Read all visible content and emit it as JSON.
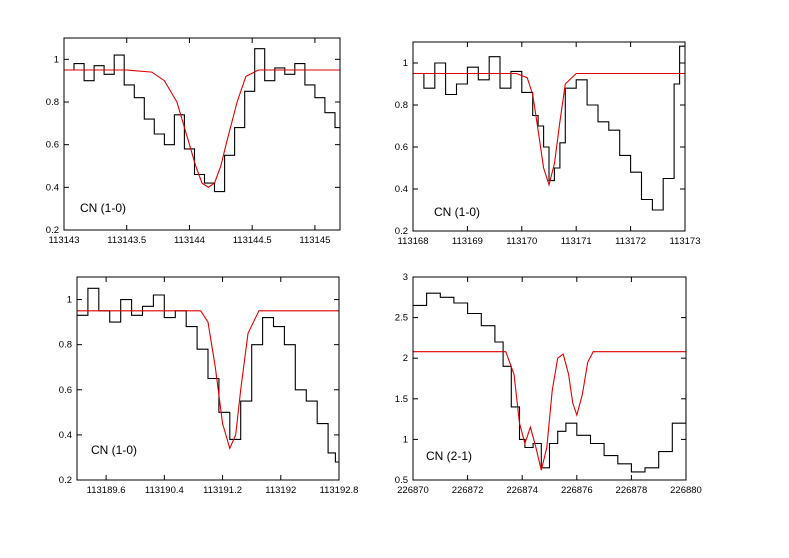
{
  "chart_data": [
    {
      "type": "line",
      "label": "CN (1-0)",
      "xlim": [
        113143,
        113145.2
      ],
      "ylim": [
        0.2,
        1.1
      ],
      "xticks": [
        "113143",
        "113143.5",
        "113144",
        "113144.5",
        "113145"
      ],
      "xtick_values": [
        113143,
        113143.5,
        113144,
        113144.5,
        113145
      ],
      "yticks": [
        "0.2",
        "0.4",
        "0.6",
        "0.8",
        "1"
      ],
      "ytick_values": [
        0.2,
        0.4,
        0.6,
        0.8,
        1.0
      ],
      "series": [
        {
          "style": "step",
          "color": "#000000",
          "x": [
            113143.0,
            113143.08,
            113143.16,
            113143.24,
            113143.32,
            113143.4,
            113143.48,
            113143.56,
            113143.64,
            113143.72,
            113143.8,
            113143.88,
            113143.96,
            113144.04,
            113144.12,
            113144.2,
            113144.28,
            113144.36,
            113144.44,
            113144.52,
            113144.6,
            113144.68,
            113144.76,
            113144.84,
            113144.92,
            113145.0,
            113145.08,
            113145.16
          ],
          "y": [
            0.95,
            0.98,
            0.9,
            0.97,
            0.93,
            1.02,
            0.88,
            0.82,
            0.72,
            0.65,
            0.6,
            0.74,
            0.58,
            0.46,
            0.42,
            0.38,
            0.55,
            0.68,
            0.85,
            1.05,
            0.9,
            0.96,
            0.93,
            0.98,
            0.88,
            0.82,
            0.75,
            0.68
          ]
        },
        {
          "style": "line",
          "color": "#e00000",
          "x": [
            113143.0,
            113143.5,
            113143.7,
            113143.8,
            113143.9,
            113144.0,
            113144.05,
            113144.1,
            113144.15,
            113144.2,
            113144.25,
            113144.3,
            113144.38,
            113144.45,
            113144.55,
            113145.2
          ],
          "y": [
            0.95,
            0.95,
            0.94,
            0.9,
            0.8,
            0.6,
            0.5,
            0.42,
            0.4,
            0.42,
            0.5,
            0.62,
            0.8,
            0.92,
            0.95,
            0.95
          ]
        }
      ]
    },
    {
      "type": "line",
      "label": "CN (1-0)",
      "xlim": [
        113168,
        113173
      ],
      "ylim": [
        0.2,
        1.1
      ],
      "xticks": [
        "113168",
        "113169",
        "113170",
        "113171",
        "113172",
        "113173"
      ],
      "xtick_values": [
        113168,
        113169,
        113170,
        113171,
        113172,
        113173
      ],
      "yticks": [
        "0.2",
        "0.4",
        "0.6",
        "0.8",
        "1"
      ],
      "ytick_values": [
        0.2,
        0.4,
        0.6,
        0.8,
        1.0
      ],
      "series": [
        {
          "style": "step",
          "color": "#000000",
          "x": [
            113168.0,
            113168.2,
            113168.4,
            113168.6,
            113168.8,
            113169.0,
            113169.2,
            113169.4,
            113169.6,
            113169.8,
            113170.0,
            113170.2,
            113170.3,
            113170.4,
            113170.5,
            113170.6,
            113170.7,
            113170.8,
            113171.0,
            113171.2,
            113171.4,
            113171.6,
            113171.8,
            113172.0,
            113172.2,
            113172.4,
            113172.6,
            113172.8,
            113172.9
          ],
          "y": [
            0.95,
            0.88,
            1.0,
            0.85,
            0.9,
            0.98,
            0.92,
            1.03,
            0.88,
            0.96,
            0.86,
            0.75,
            0.7,
            0.6,
            0.44,
            0.5,
            0.62,
            0.88,
            0.92,
            0.8,
            0.72,
            0.68,
            0.56,
            0.48,
            0.35,
            0.3,
            0.45,
            0.9,
            1.08
          ]
        },
        {
          "style": "line",
          "color": "#e00000",
          "x": [
            113168.0,
            113169.9,
            113170.1,
            113170.2,
            113170.3,
            113170.4,
            113170.5,
            113170.6,
            113170.7,
            113170.8,
            113171.0,
            113173.0
          ],
          "y": [
            0.95,
            0.95,
            0.93,
            0.85,
            0.68,
            0.5,
            0.42,
            0.52,
            0.72,
            0.9,
            0.95,
            0.95
          ]
        }
      ]
    },
    {
      "type": "line",
      "label": "CN (1-0)",
      "xlim": [
        113189.2,
        113192.8
      ],
      "ylim": [
        0.2,
        1.1
      ],
      "xticks": [
        "113189.6",
        "113190.4",
        "113191.2",
        "113192",
        "113192.8"
      ],
      "xtick_values": [
        113189.6,
        113190.4,
        113191.2,
        113192,
        113192.8
      ],
      "yticks": [
        "0.2",
        "0.4",
        "0.6",
        "0.8",
        "1"
      ],
      "ytick_values": [
        0.2,
        0.4,
        0.6,
        0.8,
        1.0
      ],
      "series": [
        {
          "style": "step",
          "color": "#000000",
          "x": [
            113189.2,
            113189.35,
            113189.5,
            113189.65,
            113189.8,
            113189.95,
            113190.1,
            113190.25,
            113190.4,
            113190.55,
            113190.7,
            113190.85,
            113191.0,
            113191.15,
            113191.3,
            113191.45,
            113191.6,
            113191.75,
            113191.9,
            113192.05,
            113192.2,
            113192.35,
            113192.5,
            113192.65,
            113192.75
          ],
          "y": [
            0.93,
            1.05,
            0.95,
            0.9,
            1.0,
            0.93,
            0.97,
            1.02,
            0.92,
            0.95,
            0.88,
            0.78,
            0.65,
            0.5,
            0.38,
            0.55,
            0.8,
            0.92,
            0.88,
            0.8,
            0.6,
            0.55,
            0.45,
            0.32,
            0.28
          ]
        },
        {
          "style": "line",
          "color": "#e00000",
          "x": [
            113189.2,
            113190.9,
            113191.0,
            113191.1,
            113191.2,
            113191.3,
            113191.38,
            113191.45,
            113191.55,
            113191.7,
            113192.8
          ],
          "y": [
            0.95,
            0.95,
            0.9,
            0.7,
            0.45,
            0.34,
            0.4,
            0.6,
            0.85,
            0.95,
            0.95
          ]
        }
      ]
    },
    {
      "type": "line",
      "label": "CN (2-1)",
      "xlim": [
        226870,
        226880
      ],
      "ylim": [
        0.5,
        3.0
      ],
      "xticks": [
        "226870",
        "226872",
        "226874",
        "226876",
        "226878",
        "226880"
      ],
      "xtick_values": [
        226870,
        226872,
        226874,
        226876,
        226878,
        226880
      ],
      "yticks": [
        "0.5",
        "1",
        "1.5",
        "2",
        "2.5",
        "3"
      ],
      "ytick_values": [
        0.5,
        1.0,
        1.5,
        2.0,
        2.5,
        3.0
      ],
      "series": [
        {
          "style": "step",
          "color": "#000000",
          "x": [
            226870.0,
            226870.5,
            226871.0,
            226871.5,
            226872.0,
            226872.5,
            226873.0,
            226873.3,
            226873.6,
            226873.9,
            226874.1,
            226874.4,
            226874.7,
            226875.0,
            226875.3,
            226875.6,
            226876.0,
            226876.5,
            226877.0,
            226877.5,
            226878.0,
            226878.5,
            226879.0,
            226879.5,
            226880.0
          ],
          "y": [
            2.65,
            2.8,
            2.75,
            2.68,
            2.55,
            2.4,
            2.2,
            1.9,
            1.4,
            1.0,
            0.9,
            0.95,
            0.65,
            0.95,
            1.1,
            1.2,
            1.05,
            0.95,
            0.8,
            0.7,
            0.6,
            0.65,
            0.85,
            1.2,
            1.55
          ]
        },
        {
          "style": "line",
          "color": "#e00000",
          "x": [
            226870.0,
            226873.4,
            226873.7,
            226873.9,
            226874.1,
            226874.3,
            226874.5,
            226874.7,
            226874.9,
            226875.1,
            226875.3,
            226875.5,
            226875.7,
            226875.85,
            226876.0,
            226876.2,
            226876.4,
            226876.6,
            226880.0
          ],
          "y": [
            2.08,
            2.08,
            1.8,
            1.2,
            0.95,
            1.15,
            0.9,
            0.62,
            0.9,
            1.6,
            2.0,
            2.05,
            1.8,
            1.45,
            1.3,
            1.55,
            1.95,
            2.08,
            2.08
          ]
        }
      ]
    }
  ]
}
